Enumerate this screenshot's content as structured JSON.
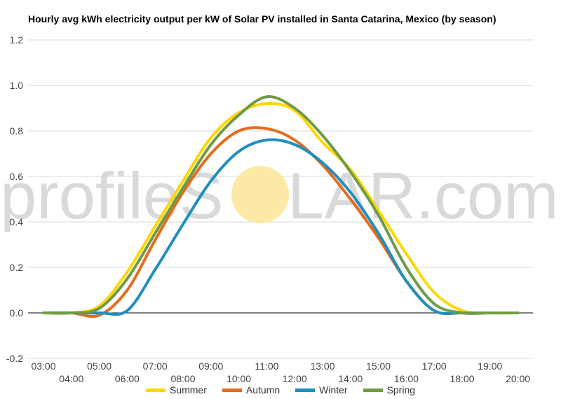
{
  "watermark": {
    "left": "profileS",
    "right": "LAR.com"
  },
  "colors": {
    "grid": "#d9d9d9",
    "zero_line": "#000000",
    "sun": "#fde9a6"
  },
  "chart_data": {
    "type": "line",
    "title": "Hourly avg kWh electricity output per kW of Solar PV installed in Santa Catarina, Mexico (by season)",
    "xlabel": "",
    "ylabel": "",
    "ylim": [
      -0.2,
      1.2
    ],
    "yticks": [
      "-0.2",
      "0.0",
      "0.2",
      "0.4",
      "0.6",
      "0.8",
      "1.0",
      "1.2"
    ],
    "ytick_values": [
      -0.2,
      0.0,
      0.2,
      0.4,
      0.6,
      0.8,
      1.0,
      1.2
    ],
    "x": [
      "03:00",
      "04:00",
      "05:00",
      "06:00",
      "07:00",
      "08:00",
      "09:00",
      "10:00",
      "11:00",
      "12:00",
      "13:00",
      "14:00",
      "15:00",
      "16:00",
      "17:00",
      "18:00",
      "19:00",
      "20:00"
    ],
    "grid": true,
    "legend_position": "bottom",
    "series": [
      {
        "name": "Summer",
        "color": "#ffd700",
        "values": [
          0.0,
          0.0,
          0.03,
          0.18,
          0.38,
          0.58,
          0.77,
          0.88,
          0.92,
          0.89,
          0.75,
          0.63,
          0.45,
          0.26,
          0.09,
          0.01,
          0.0,
          0.0
        ]
      },
      {
        "name": "Autumn",
        "color": "#e46c1f",
        "values": [
          0.0,
          0.0,
          -0.01,
          0.1,
          0.32,
          0.53,
          0.7,
          0.8,
          0.81,
          0.76,
          0.65,
          0.5,
          0.33,
          0.14,
          0.01,
          0.0,
          0.0,
          0.0
        ]
      },
      {
        "name": "Winter",
        "color": "#1f8fbe",
        "values": [
          0.0,
          0.0,
          0.0,
          0.01,
          0.19,
          0.39,
          0.58,
          0.71,
          0.76,
          0.74,
          0.66,
          0.53,
          0.35,
          0.14,
          0.01,
          0.0,
          0.0,
          0.0
        ]
      },
      {
        "name": "Spring",
        "color": "#6f9b47",
        "values": [
          0.0,
          0.0,
          0.02,
          0.15,
          0.35,
          0.55,
          0.74,
          0.87,
          0.95,
          0.9,
          0.78,
          0.62,
          0.43,
          0.2,
          0.04,
          0.0,
          0.0,
          0.0
        ]
      }
    ]
  }
}
